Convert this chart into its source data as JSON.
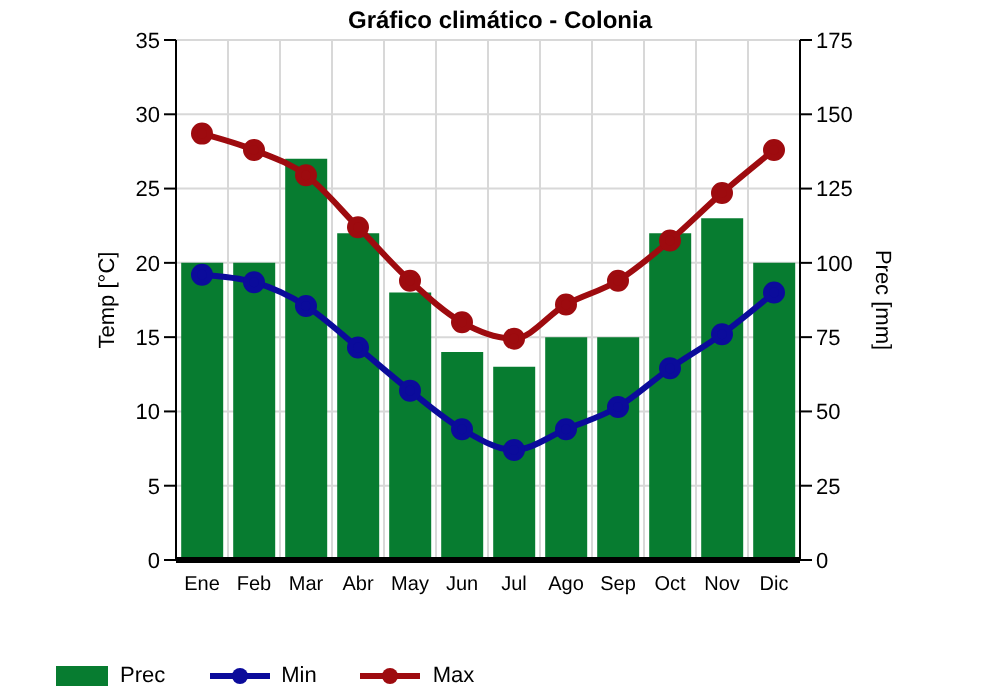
{
  "chart_data": {
    "type": "bar",
    "title": "Gráfico climático - Colonia",
    "ylabel": "Temp [°C]",
    "y2label": "Prec [mm]",
    "categories": [
      "Ene",
      "Feb",
      "Mar",
      "Abr",
      "May",
      "Jun",
      "Jul",
      "Ago",
      "Sep",
      "Oct",
      "Nov",
      "Dic"
    ],
    "series": [
      {
        "name": "Prec",
        "axis": "y2",
        "color": "#077c30",
        "values": [
          100,
          100,
          135,
          110,
          90,
          70,
          65,
          75,
          75,
          110,
          115,
          100
        ]
      },
      {
        "name": "Min",
        "type": "line",
        "color": "#0b0b9b",
        "values": [
          19.2,
          18.7,
          17.1,
          14.3,
          11.4,
          8.8,
          7.4,
          8.8,
          10.3,
          12.9,
          15.2,
          18.0
        ]
      },
      {
        "name": "Max",
        "type": "line",
        "color": "#9e0b0f",
        "values": [
          28.7,
          27.6,
          25.9,
          22.4,
          18.8,
          16.0,
          14.9,
          17.2,
          18.8,
          21.5,
          24.7,
          27.6
        ]
      }
    ],
    "ylim": [
      0,
      35
    ],
    "yticks": [
      0,
      5,
      10,
      15,
      20,
      25,
      30,
      35
    ],
    "y2lim": [
      0,
      175
    ],
    "y2ticks": [
      0,
      25,
      50,
      75,
      100,
      125,
      150,
      175
    ],
    "grid": true,
    "legend": "bottom",
    "marker": "circle"
  }
}
